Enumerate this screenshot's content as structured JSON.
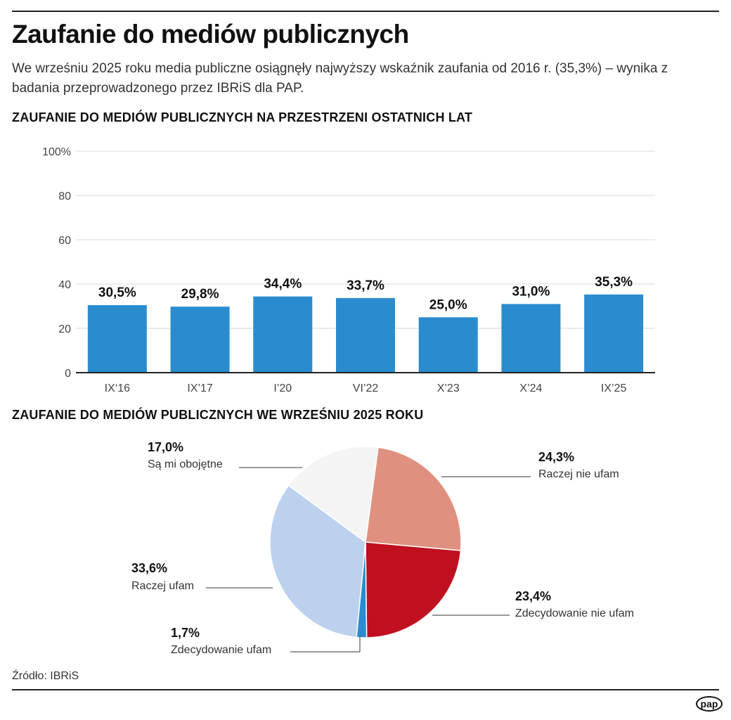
{
  "title": "Zaufanie do mediów publicznych",
  "subtitle": "We wrześniu 2025 roku media publiczne osiągnęły najwyższy wskaźnik zaufania od 2016 r. (35,3%) – wynika z badania przeprowadzonego przez IBRiS dla PAP.",
  "source": "Źródło: IBRiS",
  "logo": "pap",
  "chart_data": [
    {
      "type": "bar",
      "title": "ZAUFANIE DO MEDIÓW PUBLICZNYCH NA PRZESTRZENI OSTATNICH LAT",
      "categories": [
        "IX‘16",
        "IX’17",
        "I’20",
        "VI’22",
        "X’23",
        "X’24",
        "IX’25"
      ],
      "values": [
        30.5,
        29.8,
        34.4,
        33.7,
        25.0,
        31.0,
        35.3
      ],
      "data_labels": [
        "30,5%",
        "29,8%",
        "34,4%",
        "33,7%",
        "25,0%",
        "31,0%",
        "35,3%"
      ],
      "yticks": [
        "0",
        "20",
        "40",
        "60",
        "80",
        "100%"
      ],
      "ylim": [
        0,
        100
      ],
      "grid": true,
      "color": "#2a8ccf"
    },
    {
      "type": "pie",
      "title": "ZAUFANIE DO MEDIÓW PUBLICZNYCH WE WRZEŚNIU 2025 ROKU",
      "slices": [
        {
          "label": "Raczej nie ufam",
          "value": 24.3,
          "text": "24,3%",
          "color": "#e0907e"
        },
        {
          "label": "Zdecydowanie nie ufam",
          "value": 23.4,
          "text": "23,4%",
          "color": "#c00f1f"
        },
        {
          "label": "Zdecydowanie ufam",
          "value": 1.7,
          "text": "1,7%",
          "color": "#2a8ccf"
        },
        {
          "label": "Raczej ufam",
          "value": 33.6,
          "text": "33,6%",
          "color": "#bcd1ee"
        },
        {
          "label": "Są mi obojętne",
          "value": 17.0,
          "text": "17,0%",
          "color": "#f4f4f4"
        }
      ]
    }
  ]
}
